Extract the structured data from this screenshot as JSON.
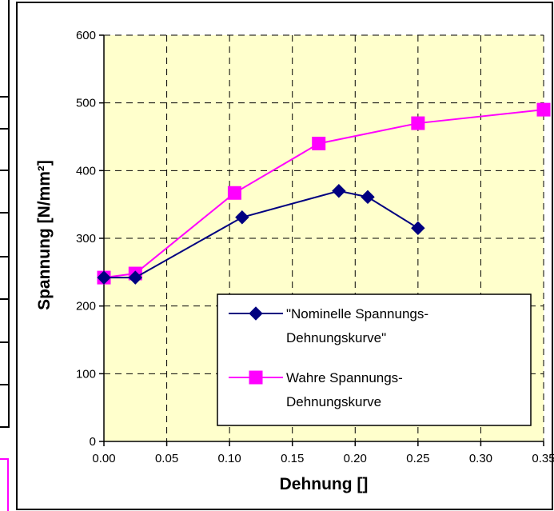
{
  "chart_data": {
    "type": "line",
    "title": "",
    "xlabel": "Dehnung []",
    "ylabel": "Spannung [N/mm²]",
    "xlim": [
      0,
      0.35
    ],
    "ylim": [
      0,
      600
    ],
    "x_ticks": [
      "0.00",
      "0.05",
      "0.10",
      "0.15",
      "0.20",
      "0.25",
      "0.30",
      "0.35"
    ],
    "y_ticks": [
      "0",
      "100",
      "200",
      "300",
      "400",
      "500",
      "600"
    ],
    "grid": true,
    "legend_position": "bottom-right",
    "plot_background": "#ffffcc",
    "series": [
      {
        "name": "\"Nominelle Spannungs-Dehnungskurve\"",
        "legend_lines": [
          "\"Nominelle Spannungs-",
          "Dehnungskurve\""
        ],
        "color": "#000080",
        "marker": "diamond",
        "x": [
          0.0,
          0.025,
          0.11,
          0.187,
          0.21,
          0.25
        ],
        "y": [
          242,
          242,
          331,
          370,
          361,
          315
        ]
      },
      {
        "name": "Wahre Spannungs-Dehnungskurve",
        "legend_lines": [
          "Wahre Spannungs-",
          "Dehnungskurve"
        ],
        "color": "#ff00ff",
        "marker": "square",
        "x": [
          0.0,
          0.025,
          0.104,
          0.171,
          0.25,
          0.35
        ],
        "y": [
          242,
          248,
          367,
          440,
          470,
          490
        ]
      }
    ]
  }
}
